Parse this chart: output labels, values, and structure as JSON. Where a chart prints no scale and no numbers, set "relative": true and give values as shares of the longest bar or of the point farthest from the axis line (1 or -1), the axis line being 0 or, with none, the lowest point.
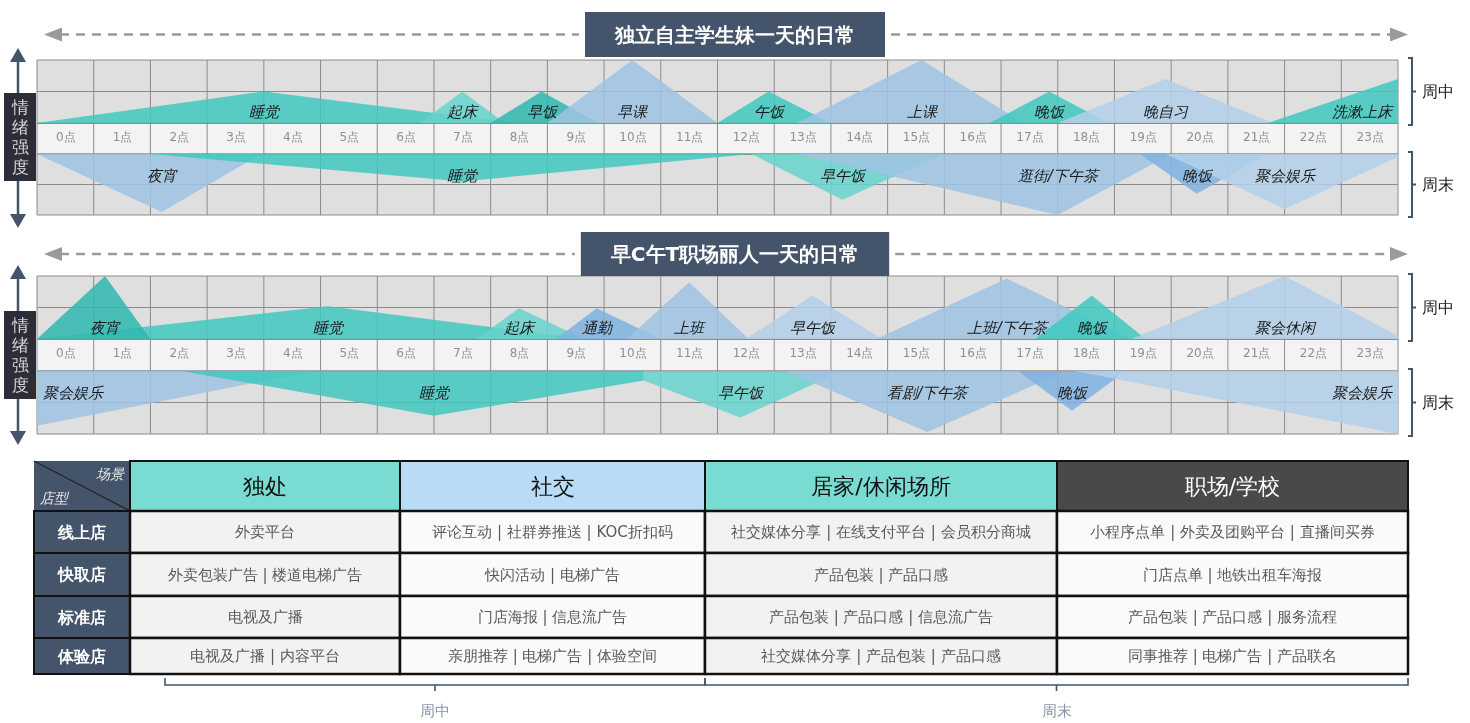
{
  "chart_data": [
    {
      "type": "area",
      "title": "独立自主学生妹一天的日常",
      "ylabel": "情绪强度",
      "relative": true,
      "grid": true,
      "xlim": [
        0,
        24
      ],
      "xticks": [
        {
          "value": 0.5,
          "label": "0点"
        },
        {
          "value": 1.5,
          "label": "1点"
        },
        {
          "value": 2.5,
          "label": "2点"
        },
        {
          "value": 3.5,
          "label": "3点"
        },
        {
          "value": 4.5,
          "label": "4点"
        },
        {
          "value": 5.5,
          "label": "5点"
        },
        {
          "value": 6.5,
          "label": "6点"
        },
        {
          "value": 7.5,
          "label": "7点"
        },
        {
          "value": 8.5,
          "label": "8点"
        },
        {
          "value": 9.5,
          "label": "9点"
        },
        {
          "value": 10.5,
          "label": "10点"
        },
        {
          "value": 11.5,
          "label": "11点"
        },
        {
          "value": 12.5,
          "label": "12点"
        },
        {
          "value": 13.5,
          "label": "13点"
        },
        {
          "value": 14.5,
          "label": "14点"
        },
        {
          "value": 15.5,
          "label": "15点"
        },
        {
          "value": 16.5,
          "label": "16点"
        },
        {
          "value": 17.5,
          "label": "17点"
        },
        {
          "value": 18.5,
          "label": "18点"
        },
        {
          "value": 19.5,
          "label": "19点"
        },
        {
          "value": 20.5,
          "label": "20点"
        },
        {
          "value": 21.5,
          "label": "21点"
        },
        {
          "value": 22.5,
          "label": "22点"
        },
        {
          "value": 23.5,
          "label": "23点"
        }
      ],
      "annotations": [
        "周中"
      ],
      "series": [
        {
          "name": "睡觉",
          "color": "#40c8c0",
          "x": [
            0,
            4,
            8.4
          ],
          "values": [
            0,
            0.5,
            0
          ]
        },
        {
          "name": "起床",
          "color": "#66d4cc",
          "x": [
            6.75,
            7.5,
            8.25
          ],
          "values": [
            0,
            0.5,
            0
          ]
        },
        {
          "name": "早饭",
          "color": "#2fb8b0",
          "x": [
            8,
            8.9,
            9.9
          ],
          "values": [
            0,
            0.5,
            0
          ]
        },
        {
          "name": "早课",
          "color": "#9fc3e3",
          "x": [
            9,
            10.5,
            12
          ],
          "values": [
            0,
            1,
            0
          ]
        },
        {
          "name": "午饭",
          "color": "#40c8c0",
          "x": [
            12,
            12.9,
            14
          ],
          "values": [
            0,
            0.5,
            0
          ]
        },
        {
          "name": "上课",
          "color": "#9fc3e3",
          "x": [
            13.4,
            15.6,
            17.4
          ],
          "values": [
            0,
            1,
            0
          ]
        },
        {
          "name": "晚饭",
          "color": "#40c8c0",
          "x": [
            16.8,
            17.85,
            18.9
          ],
          "values": [
            0,
            0.5,
            0
          ]
        },
        {
          "name": "晚自习",
          "color": "#b3d0ea",
          "x": [
            18,
            19.9,
            21.8
          ],
          "values": [
            0,
            0.7,
            0
          ]
        },
        {
          "name": "洗漱上床",
          "color": "#40c8c0",
          "x": [
            21.7,
            24
          ],
          "values": [
            0,
            0.7
          ]
        }
      ]
    },
    {
      "type": "area",
      "relative": true,
      "grid": true,
      "xlim": [
        0,
        24
      ],
      "annotations": [
        "周末"
      ],
      "series": [
        {
          "name": "夜宵",
          "color": "#9fc3e3",
          "x": [
            0,
            2.2,
            3.95
          ],
          "values": [
            0,
            -0.95,
            0
          ]
        },
        {
          "name": "睡觉",
          "color": "#40c8c0",
          "x": [
            2,
            7.5,
            12.6
          ],
          "values": [
            0,
            -0.45,
            0
          ]
        },
        {
          "name": "早午饭",
          "color": "#66d4cc",
          "x": [
            12.6,
            14.2,
            16
          ],
          "values": [
            0,
            -0.75,
            0
          ]
        },
        {
          "name": "逛街/下午茶",
          "color": "#9fc3e3",
          "x": [
            13.4,
            18,
            20
          ],
          "values": [
            0,
            -1,
            0
          ]
        },
        {
          "name": "晚饭",
          "color": "#7fb2e0",
          "x": [
            19.45,
            20.45,
            21.7
          ],
          "values": [
            0,
            -0.65,
            0
          ]
        },
        {
          "name": "聚会娱乐",
          "color": "#b3d0ea",
          "x": [
            19.9,
            22,
            24
          ],
          "values": [
            0,
            -0.9,
            -0.05
          ]
        }
      ]
    },
    {
      "type": "area",
      "title": "早C午T职场丽人一天的日常",
      "ylabel": "情绪强度",
      "relative": true,
      "grid": true,
      "xlim": [
        0,
        24
      ],
      "xticks": [
        {
          "value": 0.5,
          "label": "0点"
        },
        {
          "value": 1.5,
          "label": "1点"
        },
        {
          "value": 2.5,
          "label": "2点"
        },
        {
          "value": 3.5,
          "label": "3点"
        },
        {
          "value": 4.5,
          "label": "4点"
        },
        {
          "value": 5.5,
          "label": "5点"
        },
        {
          "value": 6.5,
          "label": "6点"
        },
        {
          "value": 7.5,
          "label": "7点"
        },
        {
          "value": 8.5,
          "label": "8点"
        },
        {
          "value": 9.5,
          "label": "9点"
        },
        {
          "value": 10.5,
          "label": "10点"
        },
        {
          "value": 11.5,
          "label": "11点"
        },
        {
          "value": 12.5,
          "label": "12点"
        },
        {
          "value": 13.5,
          "label": "13点"
        },
        {
          "value": 14.5,
          "label": "14点"
        },
        {
          "value": 15.5,
          "label": "15点"
        },
        {
          "value": 16.5,
          "label": "16点"
        },
        {
          "value": 17.5,
          "label": "17点"
        },
        {
          "value": 18.5,
          "label": "18点"
        },
        {
          "value": 19.5,
          "label": "19点"
        },
        {
          "value": 20.5,
          "label": "20点"
        },
        {
          "value": 21.5,
          "label": "21点"
        },
        {
          "value": 22.5,
          "label": "22点"
        },
        {
          "value": 23.5,
          "label": "23点"
        }
      ],
      "annotations": [
        "周中"
      ],
      "series": [
        {
          "name": "睡觉",
          "color": "#40c8c0",
          "x": [
            0,
            5.13,
            9.65
          ],
          "values": [
            0,
            0.52,
            0
          ]
        },
        {
          "name": "夜宵",
          "color": "#2fb8b0",
          "x": [
            0,
            1.2,
            2
          ],
          "values": [
            0,
            1,
            0
          ]
        },
        {
          "name": "起床",
          "color": "#66d4cc",
          "x": [
            7.75,
            8.5,
            9.65
          ],
          "values": [
            0,
            0.49,
            0
          ]
        },
        {
          "name": "通勤",
          "color": "#7fb2e0",
          "x": [
            9.15,
            9.87,
            11
          ],
          "values": [
            0,
            0.49,
            0
          ]
        },
        {
          "name": "上班",
          "color": "#9fc3e3",
          "x": [
            10.4,
            11.5,
            12.55
          ],
          "values": [
            0,
            0.9,
            0
          ]
        },
        {
          "name": "早午饭",
          "color": "#b3d0ea",
          "x": [
            12.5,
            13.67,
            14.9
          ],
          "values": [
            0,
            0.69,
            0
          ]
        },
        {
          "name": "上班/下午茶",
          "color": "#9fc3e3",
          "x": [
            14.8,
            17.1,
            19.3
          ],
          "values": [
            0,
            0.96,
            0
          ]
        },
        {
          "name": "晚饭",
          "color": "#40c8c0",
          "x": [
            17.6,
            18.6,
            19.55
          ],
          "values": [
            0,
            0.69,
            0
          ]
        },
        {
          "name": "聚会休闲",
          "color": "#b3d0ea",
          "x": [
            19.3,
            22,
            24
          ],
          "values": [
            0,
            1,
            0.05
          ]
        }
      ]
    },
    {
      "type": "area",
      "relative": true,
      "grid": true,
      "xlim": [
        0,
        24
      ],
      "annotations": [
        "周末"
      ],
      "series": [
        {
          "name": "聚会娱乐",
          "color": "#9fc3e3",
          "x": [
            0,
            4.9
          ],
          "values": [
            -0.87,
            0
          ]
        },
        {
          "name": "睡觉",
          "color": "#40c8c0",
          "x": [
            2.55,
            7,
            10.7
          ],
          "values": [
            0,
            -0.71,
            -0.15
          ]
        },
        {
          "name": "早午饭",
          "color": "#66d4cc",
          "x": [
            10.7,
            12.4,
            14.2
          ],
          "values": [
            -0.15,
            -0.74,
            0
          ]
        },
        {
          "name": "看剧/下午茶",
          "color": "#9fc3e3",
          "x": [
            13.2,
            15.7,
            18.15
          ],
          "values": [
            0,
            -0.97,
            0
          ]
        },
        {
          "name": "晚饭",
          "color": "#7fb2e0",
          "x": [
            17.3,
            18.25,
            19.2
          ],
          "values": [
            0,
            -0.63,
            0
          ]
        },
        {
          "name": "聚会娱乐",
          "color": "#b3d0ea",
          "x": [
            18.3,
            24
          ],
          "values": [
            0,
            -1
          ]
        }
      ]
    },
    {
      "type": "other",
      "xlabel": "场景",
      "ylabel": "店型",
      "categories": [
        "独处",
        "社交",
        "居家/休闲场所",
        "职场/学校"
      ],
      "colors": [
        "#7adbd3",
        "#b8dcf5",
        "#7adbd3",
        "#494949"
      ],
      "y_categories": [
        "线上店",
        "快取店",
        "标准店",
        "体验店"
      ],
      "cell_labels": [
        [
          "外卖平台",
          "评论互动 | 社群券推送 | KOC折扣码",
          "社交媒体分享 | 在线支付平台 | 会员积分商城",
          "小程序点单 | 外卖及团购平台 | 直播间买券"
        ],
        [
          "外卖包装广告 | 楼道电梯广告",
          "快闪活动 | 电梯广告",
          "产品包装 | 产品口感",
          "门店点单 | 地铁出租车海报"
        ],
        [
          "电视及广播",
          "门店海报 | 信息流广告",
          "产品包装 | 产品口感 | 信息流广告",
          "产品包装 | 产品口感 | 服务流程"
        ],
        [
          "电视及广播 | 内容平台",
          "亲朋推荐 | 电梯广告 | 体验空间",
          "社交媒体分享 | 产品包装 | 产品口感",
          "同事推荐 | 电梯广告 | 产品联名"
        ]
      ],
      "annotations": [
        "周中",
        "周末"
      ]
    }
  ]
}
